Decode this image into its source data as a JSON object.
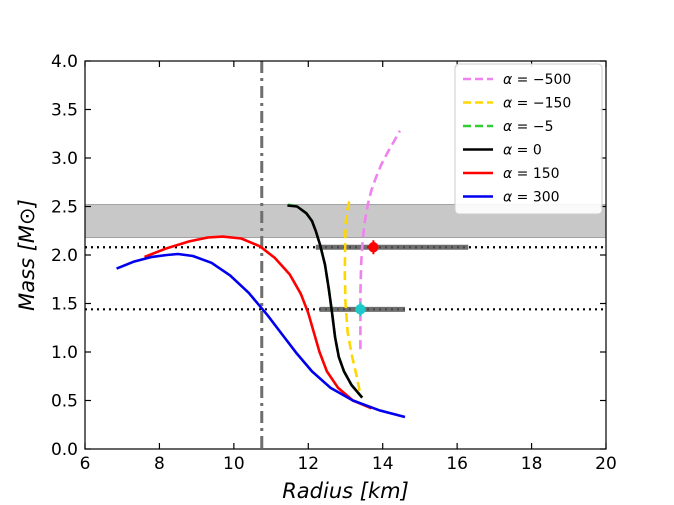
{
  "chart_data": {
    "type": "line",
    "xlabel": "Radius [km]",
    "ylabel": "Mass [M⊙]",
    "xlim": [
      6,
      20
    ],
    "ylim": [
      0,
      4
    ],
    "xticks": [
      6,
      8,
      10,
      12,
      14,
      16,
      18,
      20
    ],
    "xtick_labels": [
      "6",
      "8",
      "10",
      "12",
      "14",
      "16",
      "18",
      "20"
    ],
    "yticks": [
      0,
      0.5,
      1,
      1.5,
      2,
      2.5,
      3,
      3.5,
      4
    ],
    "ytick_labels": [
      "0.0",
      "0.5",
      "1.0",
      "1.5",
      "2.0",
      "2.5",
      "3.0",
      "3.5",
      "4.0"
    ],
    "legend_position": "top-right",
    "band": {
      "y_min": 2.18,
      "y_max": 2.52,
      "color": "#c8c8c8"
    },
    "hlines": [
      {
        "y": 2.08,
        "style": "dotted",
        "color": "#000000"
      },
      {
        "y": 1.44,
        "style": "dotted",
        "color": "#000000"
      }
    ],
    "vline": {
      "x": 10.75,
      "style": "dashdot",
      "color": "#6e6e6e"
    },
    "error_bars": [
      {
        "x": 13.75,
        "y": 2.08,
        "x_low": 12.2,
        "x_high": 16.3,
        "color": "#ff0000"
      },
      {
        "x": 13.4,
        "y": 1.44,
        "x_low": 12.3,
        "x_high": 14.6,
        "color": "#1fc9c9"
      }
    ],
    "series": [
      {
        "name": "α = −500",
        "label_lhs": "α",
        "label_rhs": "−500",
        "color": "#ee82ee",
        "dash": true,
        "x": [
          13.4,
          13.4,
          13.4,
          13.42,
          13.46,
          13.52,
          13.6,
          13.7,
          13.82,
          13.96,
          14.12,
          14.3,
          14.46
        ],
        "y": [
          1.03,
          1.3,
          1.6,
          1.9,
          2.15,
          2.35,
          2.52,
          2.67,
          2.8,
          2.93,
          3.05,
          3.17,
          3.28
        ]
      },
      {
        "name": "α = −150",
        "label_lhs": "α",
        "label_rhs": "−150",
        "color": "#ffd700",
        "dash": true,
        "x": [
          13.38,
          13.3,
          13.18,
          13.06,
          13.0,
          12.98,
          12.99,
          13.0,
          13.04,
          13.1,
          13.14
        ],
        "y": [
          0.6,
          0.75,
          0.95,
          1.2,
          1.5,
          1.8,
          2.1,
          2.3,
          2.45,
          2.55,
          2.6
        ]
      },
      {
        "name": "α = −5",
        "label_lhs": "α",
        "label_rhs": "−5",
        "color": "#32cd32",
        "dash": true,
        "x": [
          11.46,
          11.7,
          11.95,
          12.1,
          12.2,
          12.32,
          12.45,
          12.55,
          12.64,
          12.72,
          12.82,
          12.96,
          13.16,
          13.45
        ],
        "y": [
          2.52,
          2.5,
          2.43,
          2.35,
          2.25,
          2.1,
          1.9,
          1.65,
          1.4,
          1.15,
          0.95,
          0.8,
          0.66,
          0.53
        ]
      },
      {
        "name": "α = 0",
        "label_lhs": "α",
        "label_rhs": "0",
        "color": "#000000",
        "dash": false,
        "x": [
          11.44,
          11.7,
          11.95,
          12.1,
          12.2,
          12.32,
          12.45,
          12.55,
          12.64,
          12.72,
          12.82,
          12.96,
          13.16,
          13.45
        ],
        "y": [
          2.51,
          2.5,
          2.43,
          2.35,
          2.25,
          2.1,
          1.9,
          1.65,
          1.4,
          1.15,
          0.95,
          0.8,
          0.66,
          0.53
        ]
      },
      {
        "name": "α = 150",
        "label_lhs": "α",
        "label_rhs": "150",
        "color": "#ff0000",
        "dash": false,
        "x": [
          7.6,
          8.2,
          8.8,
          9.3,
          9.7,
          10.2,
          10.7,
          11.1,
          11.5,
          11.8,
          12.0,
          12.15,
          12.3,
          12.5,
          12.8,
          13.2,
          13.7
        ],
        "y": [
          1.98,
          2.07,
          2.14,
          2.18,
          2.19,
          2.17,
          2.09,
          1.97,
          1.8,
          1.6,
          1.4,
          1.2,
          1.0,
          0.8,
          0.63,
          0.5,
          0.42
        ]
      },
      {
        "name": "α = 300",
        "label_lhs": "α",
        "label_rhs": "300",
        "color": "#0000ee",
        "dash": false,
        "x": [
          6.85,
          7.3,
          7.8,
          8.2,
          8.5,
          8.9,
          9.4,
          9.9,
          10.4,
          10.9,
          11.3,
          11.7,
          12.1,
          12.6,
          13.2,
          13.9,
          14.6
        ],
        "y": [
          1.86,
          1.93,
          1.98,
          2.0,
          2.01,
          1.99,
          1.92,
          1.79,
          1.61,
          1.38,
          1.18,
          0.98,
          0.8,
          0.63,
          0.5,
          0.4,
          0.33
        ]
      }
    ]
  }
}
